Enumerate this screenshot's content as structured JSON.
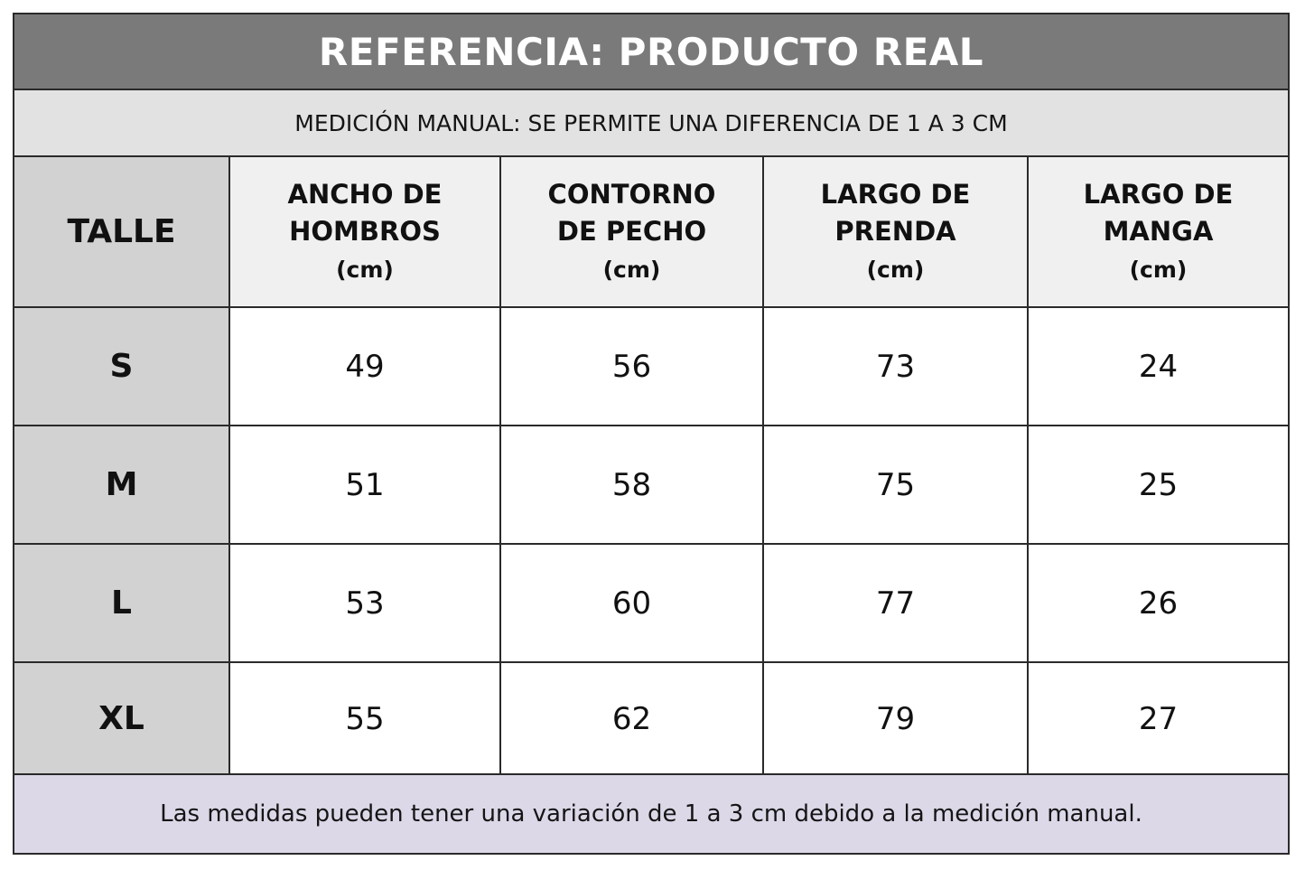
{
  "title": "REFERENCIA: PRODUCTO REAL",
  "subtitle": "MEDICIÓN MANUAL: SE PERMITE UNA DIFERENCIA DE 1 A 3 CM",
  "table": {
    "size_header": "TALLE",
    "columns": [
      {
        "title": "ANCHO DE\nHOMBROS",
        "unit": "(cm)"
      },
      {
        "title": "CONTORNO\nDE PECHO",
        "unit": "(cm)"
      },
      {
        "title": "LARGO DE\nPRENDA",
        "unit": "(cm)"
      },
      {
        "title": "LARGO DE\nMANGA",
        "unit": "(cm)"
      }
    ],
    "rows": [
      {
        "size": "S",
        "values": [
          "49",
          "56",
          "73",
          "24"
        ]
      },
      {
        "size": "M",
        "values": [
          "51",
          "58",
          "75",
          "25"
        ]
      },
      {
        "size": "L",
        "values": [
          "53",
          "60",
          "77",
          "26"
        ]
      },
      {
        "size": "XL",
        "values": [
          "55",
          "62",
          "79",
          "27"
        ]
      }
    ]
  },
  "footer": "Las medidas pueden tener una variación de 1 a 3 cm debido a la medición manual.",
  "colors": {
    "title_bg": "#7a7a7a",
    "subtitle_bg": "#e2e2e2",
    "size_column_bg": "#d2d2d2",
    "header_bg": "#f0f0f0",
    "footer_bg": "#dcd8e8",
    "border": "#2a2a2a"
  }
}
